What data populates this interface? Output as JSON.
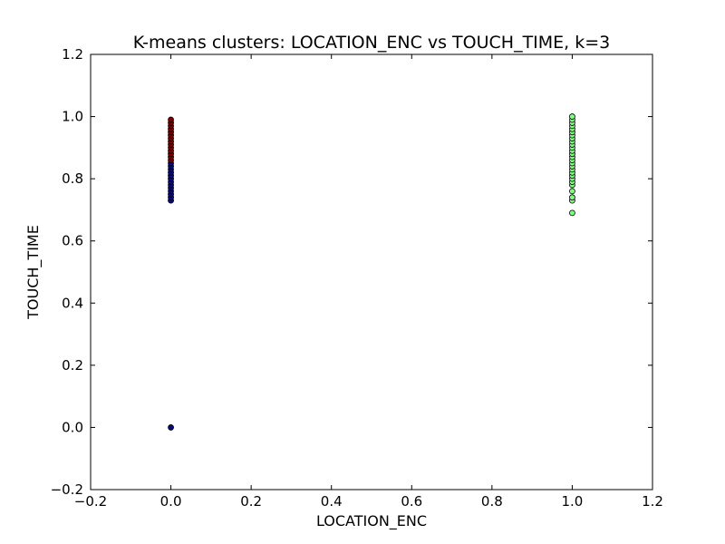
{
  "chart_data": {
    "type": "scatter",
    "title": "K-means clusters: LOCATION_ENC vs TOUCH_TIME, k=3",
    "xlabel": "LOCATION_ENC",
    "ylabel": "TOUCH_TIME",
    "xlim": [
      -0.2,
      1.2
    ],
    "ylim": [
      -0.2,
      1.2
    ],
    "xticks": [
      -0.2,
      0.0,
      0.2,
      0.4,
      0.6,
      0.8,
      1.0,
      1.2
    ],
    "yticks": [
      -0.2,
      0.0,
      0.2,
      0.4,
      0.6,
      0.8,
      1.0,
      1.2
    ],
    "xtick_labels": [
      "−0.2",
      "0.0",
      "0.2",
      "0.4",
      "0.6",
      "0.8",
      "1.0",
      "1.2"
    ],
    "ytick_labels": [
      "−0.2",
      "0.0",
      "0.2",
      "0.4",
      "0.6",
      "0.8",
      "1.0",
      "1.2"
    ],
    "grid": false,
    "series": [
      {
        "color": "#0a0a7a",
        "points": [
          [
            0,
            0.0
          ],
          [
            0,
            0.73
          ],
          [
            0,
            0.74
          ],
          [
            0,
            0.75
          ],
          [
            0,
            0.76
          ],
          [
            0,
            0.77
          ],
          [
            0,
            0.78
          ],
          [
            0,
            0.79
          ],
          [
            0,
            0.8
          ],
          [
            0,
            0.81
          ],
          [
            0,
            0.82
          ],
          [
            0,
            0.83
          ],
          [
            0,
            0.84
          ],
          [
            0,
            0.85
          ]
        ]
      },
      {
        "color": "#7a0000",
        "points": [
          [
            0,
            0.86
          ],
          [
            0,
            0.87
          ],
          [
            0,
            0.88
          ],
          [
            0,
            0.89
          ],
          [
            0,
            0.9
          ],
          [
            0,
            0.91
          ],
          [
            0,
            0.92
          ],
          [
            0,
            0.93
          ],
          [
            0,
            0.94
          ],
          [
            0,
            0.95
          ],
          [
            0,
            0.96
          ],
          [
            0,
            0.97
          ],
          [
            0,
            0.98
          ],
          [
            0,
            0.99
          ]
        ]
      },
      {
        "color": "#7fff7f",
        "points": [
          [
            1,
            0.69
          ],
          [
            1,
            0.73
          ],
          [
            1,
            0.74
          ],
          [
            1,
            0.76
          ],
          [
            1,
            0.78
          ],
          [
            1,
            0.79
          ],
          [
            1,
            0.8
          ],
          [
            1,
            0.81
          ],
          [
            1,
            0.82
          ],
          [
            1,
            0.83
          ],
          [
            1,
            0.84
          ],
          [
            1,
            0.85
          ],
          [
            1,
            0.86
          ],
          [
            1,
            0.87
          ],
          [
            1,
            0.88
          ],
          [
            1,
            0.89
          ],
          [
            1,
            0.9
          ],
          [
            1,
            0.91
          ],
          [
            1,
            0.92
          ],
          [
            1,
            0.93
          ],
          [
            1,
            0.94
          ],
          [
            1,
            0.95
          ],
          [
            1,
            0.96
          ],
          [
            1,
            0.97
          ],
          [
            1,
            0.98
          ],
          [
            1,
            0.99
          ],
          [
            1,
            1.0
          ]
        ]
      }
    ]
  }
}
